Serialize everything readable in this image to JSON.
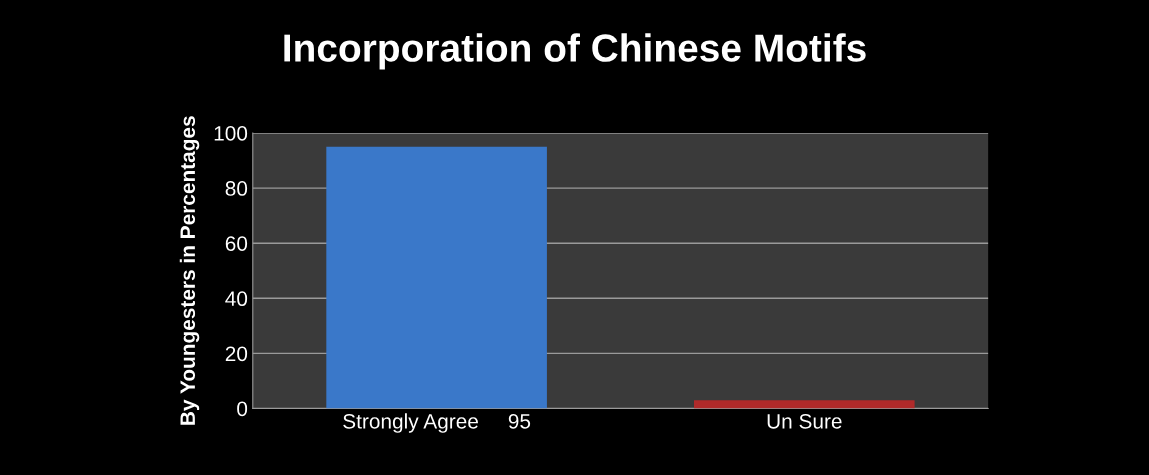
{
  "chart_data": {
    "type": "bar",
    "title": "Incorporation of Chinese Motifs",
    "ylabel": "By Youngesters in Percentages",
    "categories": [
      "Strongly Agree     95",
      "Un Sure"
    ],
    "values": [
      95,
      3
    ],
    "colors": [
      "#3a78c9",
      "#b02a2a"
    ],
    "ylim": [
      0,
      100
    ],
    "yticks": [
      0,
      20,
      40,
      60,
      80,
      100
    ],
    "grid": "y"
  }
}
